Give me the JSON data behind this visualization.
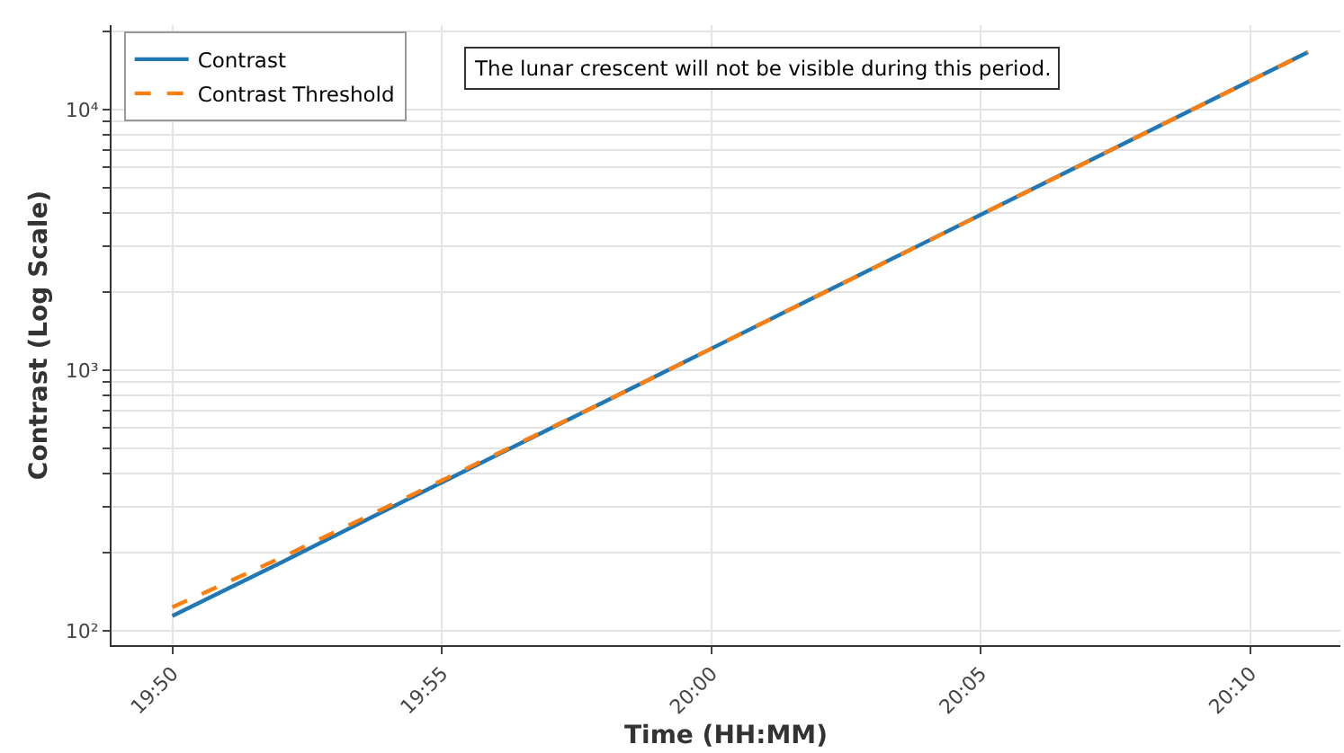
{
  "chart_data": {
    "type": "line",
    "xlabel": "Time (HH:MM)",
    "ylabel": "Contrast (Log Scale)",
    "annotations": [
      "The lunar crescent will not be visible during this period."
    ],
    "x": [
      19.8333,
      19.8667,
      19.9,
      19.9333,
      19.9667,
      20.0,
      20.0333,
      20.0667,
      20.1,
      20.1333,
      20.1667,
      20.1845
    ],
    "series": [
      {
        "name": "Contrast",
        "color": "#1f77b4",
        "line_style": "solid",
        "values": [
          114,
          182,
          293,
          470,
          754,
          1211,
          1944,
          3121,
          5010,
          8043,
          12912,
          16634
        ]
      },
      {
        "name": "Contrast Threshold",
        "color": "#ff7f0e",
        "line_style": "dashed",
        "values": [
          123,
          190,
          300,
          475,
          754,
          1211,
          1944,
          3121,
          5010,
          8043,
          12912,
          16634
        ]
      }
    ],
    "log": "y",
    "grid": true,
    "legend": "top left",
    "marker": "none",
    "xlim": [
      19.8145,
      20.1945
    ],
    "xticks": [
      {
        "value": 19.8333,
        "label": "19:50"
      },
      {
        "value": 19.9167,
        "label": "19:55"
      },
      {
        "value": 20.0,
        "label": "20:00"
      },
      {
        "value": 20.0833,
        "label": "20:05"
      },
      {
        "value": 20.1667,
        "label": "20:10"
      }
    ],
    "ylim": [
      88,
      21100
    ],
    "yticks": [
      {
        "value": 100,
        "label": "10²"
      },
      {
        "value": 200,
        "label": null
      },
      {
        "value": 300,
        "label": null
      },
      {
        "value": 400,
        "label": null
      },
      {
        "value": 500,
        "label": null
      },
      {
        "value": 600,
        "label": null
      },
      {
        "value": 700,
        "label": null
      },
      {
        "value": 800,
        "label": null
      },
      {
        "value": 900,
        "label": null
      },
      {
        "value": 1000,
        "label": "10³"
      },
      {
        "value": 2000,
        "label": null
      },
      {
        "value": 3000,
        "label": null
      },
      {
        "value": 4000,
        "label": null
      },
      {
        "value": 5000,
        "label": null
      },
      {
        "value": 6000,
        "label": null
      },
      {
        "value": 7000,
        "label": null
      },
      {
        "value": 8000,
        "label": null
      },
      {
        "value": 9000,
        "label": null
      },
      {
        "value": 10000,
        "label": "10⁴"
      },
      {
        "value": 20000,
        "label": null
      }
    ]
  }
}
